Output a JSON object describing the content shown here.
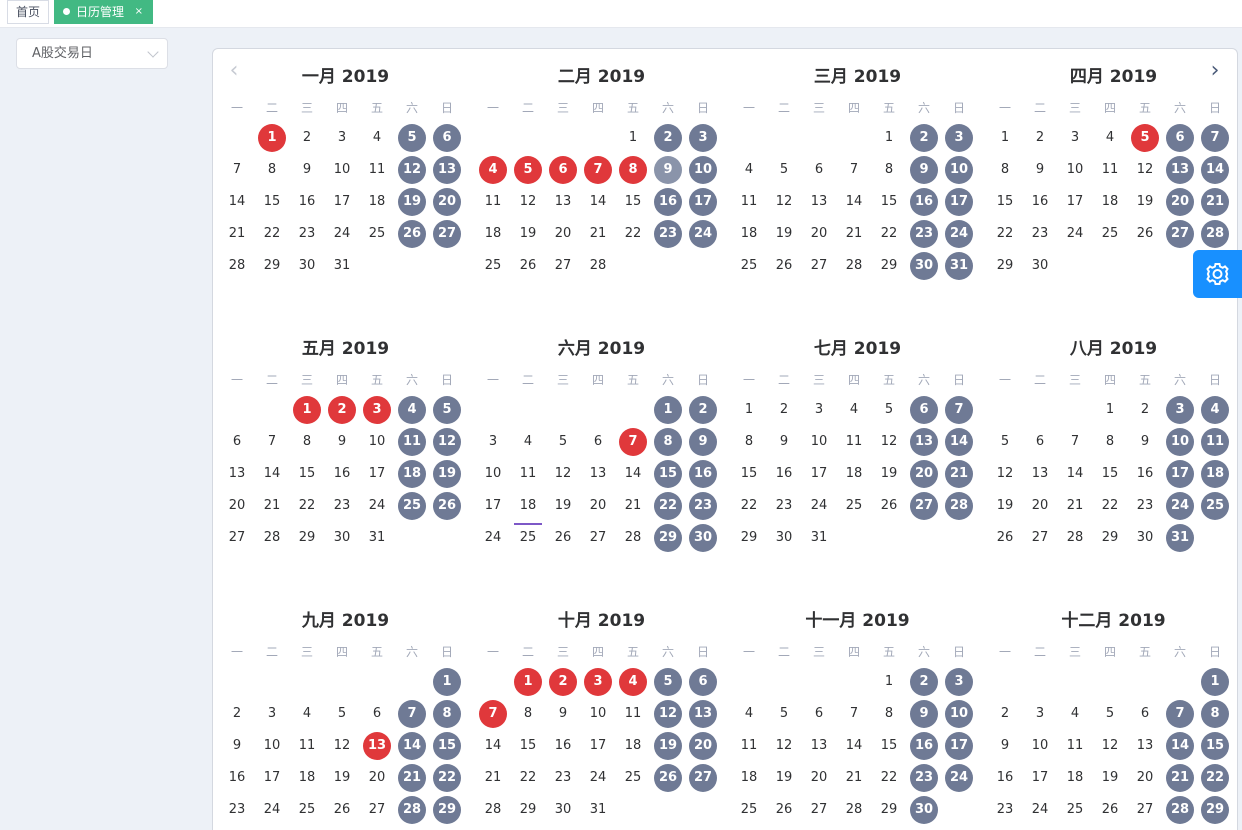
{
  "tabs": {
    "home": "首页",
    "active": "日历管理",
    "close": "×"
  },
  "filter": {
    "selected": "A股交易日"
  },
  "colors": {
    "weekend": "#6f7a95",
    "holiday": "#e0383b",
    "accent": "#1890ff",
    "tab_active": "#42b983"
  },
  "calendar": {
    "year": 2019,
    "weekday_labels": [
      "一",
      "二",
      "三",
      "四",
      "五",
      "六",
      "日"
    ],
    "months": [
      {
        "title": "一月 2019",
        "start": 1,
        "days": 31,
        "holidays": [
          1
        ],
        "weekend_workdays": []
      },
      {
        "title": "二月 2019",
        "start": 4,
        "days": 28,
        "holidays": [
          4,
          5,
          6,
          7,
          8
        ],
        "weekend_workdays": []
      },
      {
        "title": "三月 2019",
        "start": 4,
        "days": 31,
        "holidays": [],
        "weekend_workdays": []
      },
      {
        "title": "四月 2019",
        "start": 0,
        "days": 30,
        "holidays": [
          5
        ],
        "weekend_workdays": []
      },
      {
        "title": "五月 2019",
        "start": 2,
        "days": 31,
        "holidays": [
          1,
          2,
          3
        ],
        "weekend_workdays": []
      },
      {
        "title": "六月 2019",
        "start": 5,
        "days": 30,
        "holidays": [
          7
        ],
        "weekend_workdays": [],
        "today": 18
      },
      {
        "title": "七月 2019",
        "start": 0,
        "days": 31,
        "holidays": [],
        "weekend_workdays": []
      },
      {
        "title": "八月 2019",
        "start": 3,
        "days": 31,
        "holidays": [],
        "weekend_workdays": []
      },
      {
        "title": "九月 2019",
        "start": 6,
        "days": 30,
        "holidays": [
          13
        ],
        "weekend_workdays": []
      },
      {
        "title": "十月 2019",
        "start": 1,
        "days": 31,
        "holidays": [
          1,
          2,
          3,
          4,
          7
        ],
        "weekend_workdays": []
      },
      {
        "title": "十一月 2019",
        "start": 4,
        "days": 30,
        "holidays": [],
        "weekend_workdays": []
      },
      {
        "title": "十二月 2019",
        "start": 6,
        "days": 31,
        "holidays": [],
        "weekend_workdays": []
      }
    ],
    "special_gray": {
      "month_index": 1,
      "day": 9
    }
  }
}
